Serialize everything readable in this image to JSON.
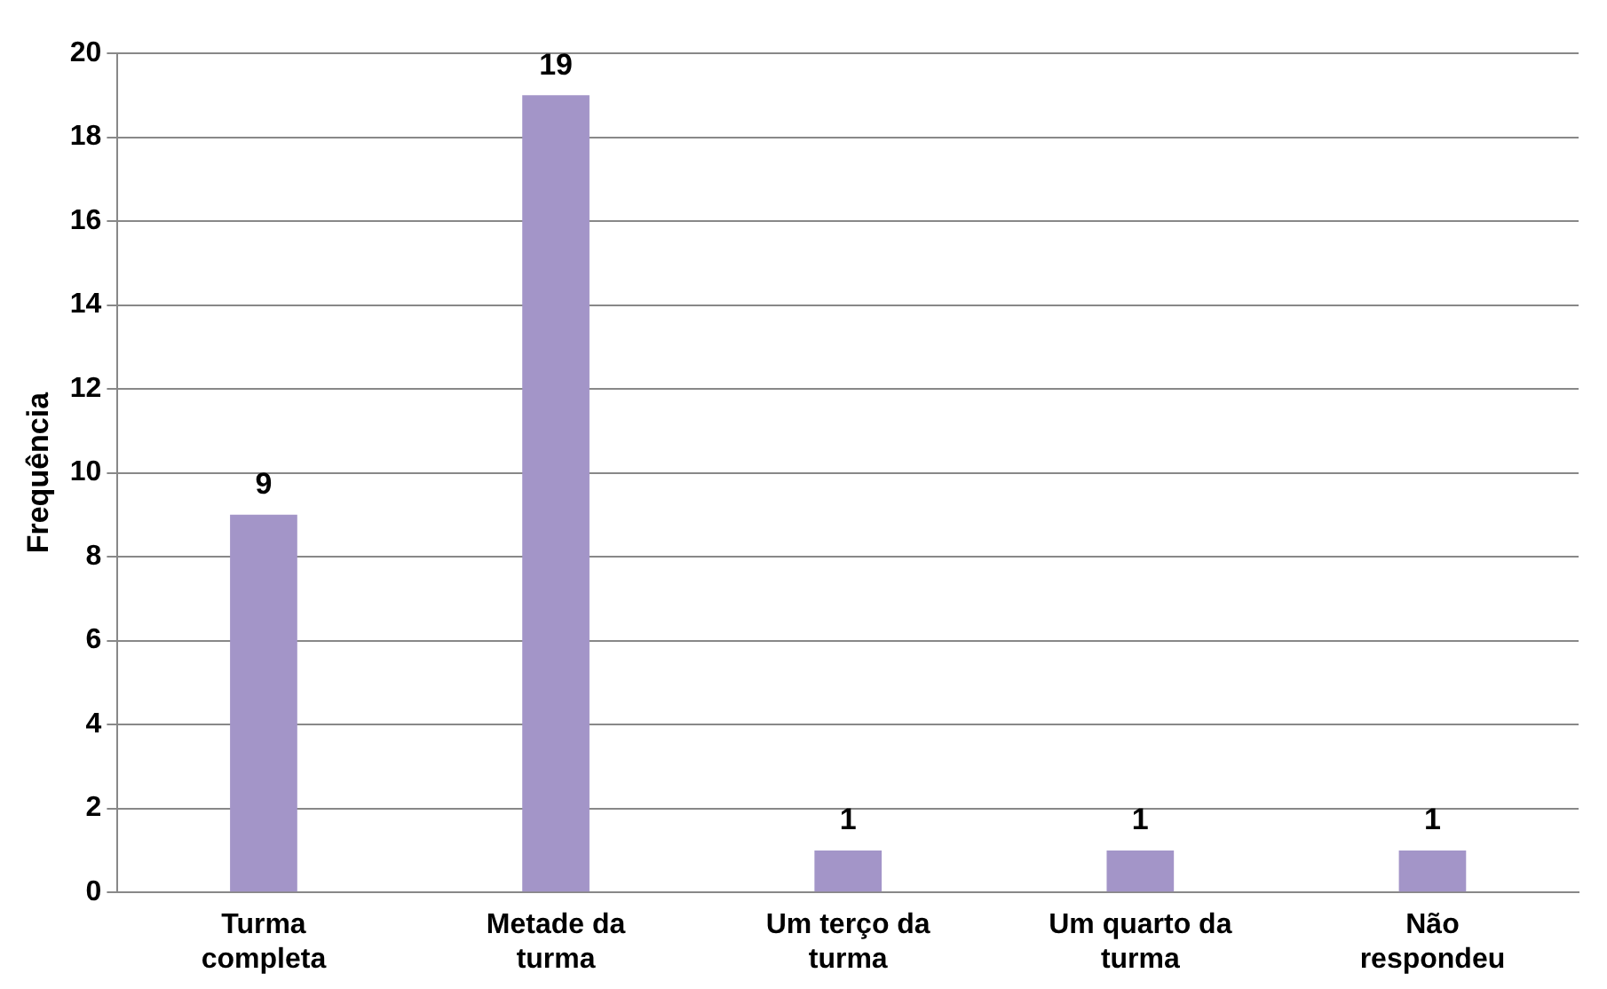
{
  "chart_data": {
    "type": "bar",
    "ylabel": "Frequência",
    "categories": [
      "Turma completa",
      "Metade da turma",
      "Um terço da turma",
      "Um quarto da turma",
      "Não respondeu"
    ],
    "values": [
      9,
      19,
      1,
      1,
      1
    ],
    "color": "#a395c8",
    "ylim": [
      0,
      20
    ],
    "yticks": [
      0,
      2,
      4,
      6,
      8,
      10,
      12,
      14,
      16,
      18,
      20
    ],
    "grid": "y",
    "data_labels": true,
    "legend": false
  }
}
